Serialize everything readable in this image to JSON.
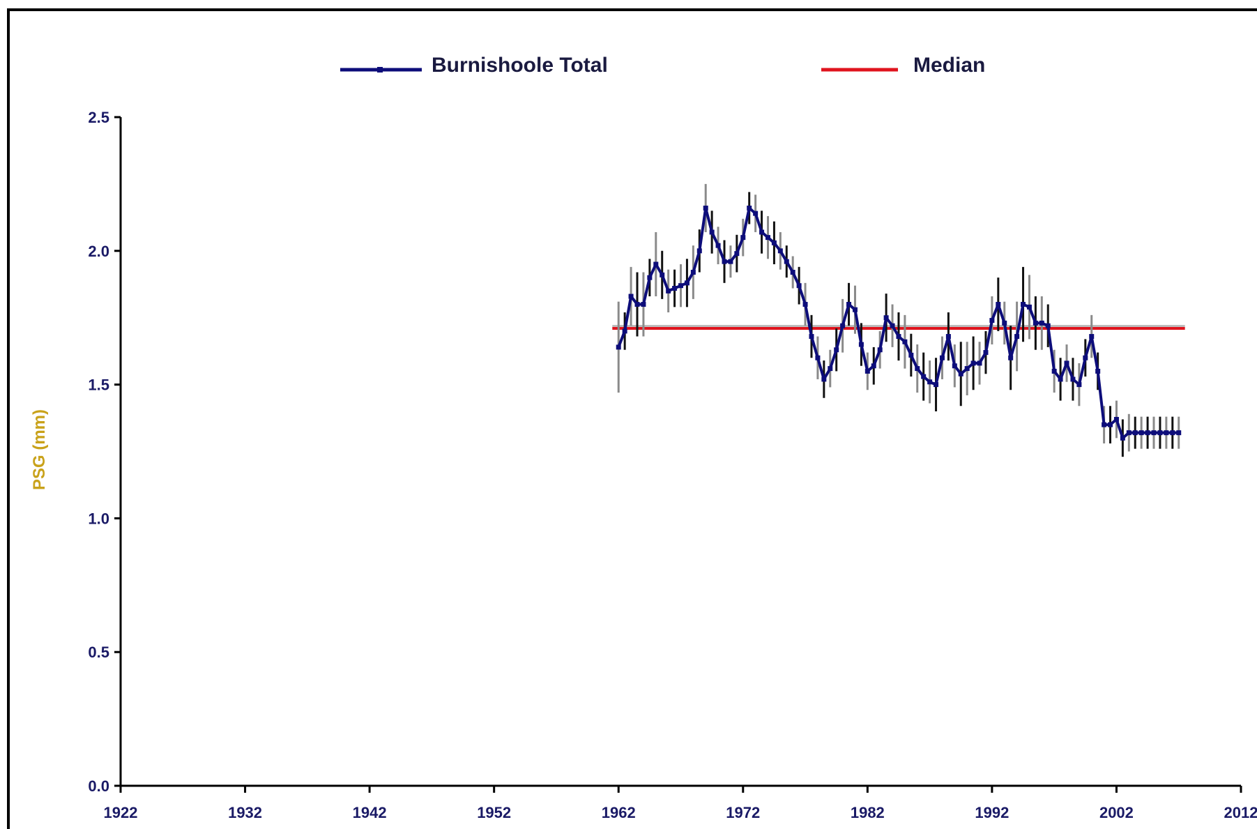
{
  "chart_data": {
    "type": "line",
    "title": "",
    "xlabel": "",
    "ylabel": "PSG (mm)",
    "xlim": [
      1922,
      2012
    ],
    "ylim": [
      0.0,
      2.5
    ],
    "x_ticks": [
      "1922",
      "1932",
      "1942",
      "1952",
      "1962",
      "1972",
      "1982",
      "1992",
      "2002",
      "2012"
    ],
    "y_ticks": [
      "0.0",
      "0.5",
      "1.0",
      "1.5",
      "2.0",
      "2.5"
    ],
    "legend_position": "top",
    "grid": false,
    "colors": {
      "series": "#0d0d7a",
      "median": "#e0141e",
      "error_bar_dark": "#111111",
      "error_bar_light": "#8a8a8a",
      "axis": "#000000",
      "ylabel": "#c9a21a"
    },
    "series": [
      {
        "name": "Burnishoole Total",
        "x": [
          1962.0,
          1962.5,
          1963.0,
          1963.5,
          1964.0,
          1964.5,
          1965.0,
          1965.5,
          1966.0,
          1966.5,
          1967.0,
          1967.5,
          1968.0,
          1968.5,
          1969.0,
          1969.5,
          1970.0,
          1970.5,
          1971.0,
          1971.5,
          1972.0,
          1972.5,
          1973.0,
          1973.5,
          1974.0,
          1974.5,
          1975.0,
          1975.5,
          1976.0,
          1976.5,
          1977.0,
          1977.5,
          1978.0,
          1978.5,
          1979.0,
          1979.5,
          1980.0,
          1980.5,
          1981.0,
          1981.5,
          1982.0,
          1982.5,
          1983.0,
          1983.5,
          1984.0,
          1984.5,
          1985.0,
          1985.5,
          1986.0,
          1986.5,
          1987.0,
          1987.5,
          1988.0,
          1988.5,
          1989.0,
          1989.5,
          1990.0,
          1990.5,
          1991.0,
          1991.5,
          1992.0,
          1992.5,
          1993.0,
          1993.5,
          1994.0,
          1994.5,
          1995.0,
          1995.5,
          1996.0,
          1996.5,
          1997.0,
          1997.5,
          1998.0,
          1998.5,
          1999.0,
          1999.5,
          2000.0,
          2000.5,
          2001.0,
          2001.5,
          2002.0,
          2002.5,
          2003.0,
          2003.5,
          2004.0,
          2004.5,
          2005.0,
          2005.5,
          2006.0,
          2006.5,
          2007.0
        ],
        "values": [
          1.64,
          1.7,
          1.83,
          1.8,
          1.8,
          1.9,
          1.95,
          1.91,
          1.85,
          1.86,
          1.87,
          1.88,
          1.92,
          2.0,
          2.16,
          2.07,
          2.02,
          1.96,
          1.96,
          1.99,
          2.05,
          2.16,
          2.14,
          2.07,
          2.05,
          2.03,
          2.0,
          1.96,
          1.92,
          1.87,
          1.8,
          1.68,
          1.6,
          1.52,
          1.56,
          1.63,
          1.72,
          1.8,
          1.78,
          1.65,
          1.55,
          1.57,
          1.63,
          1.75,
          1.72,
          1.68,
          1.66,
          1.61,
          1.56,
          1.53,
          1.51,
          1.5,
          1.6,
          1.68,
          1.57,
          1.54,
          1.56,
          1.58,
          1.58,
          1.62,
          1.74,
          1.8,
          1.73,
          1.6,
          1.68,
          1.8,
          1.79,
          1.73,
          1.73,
          1.72,
          1.55,
          1.52,
          1.58,
          1.52,
          1.5,
          1.6,
          1.68,
          1.55,
          1.35,
          1.35,
          1.37,
          1.3,
          1.32,
          1.32,
          1.32,
          1.32,
          1.32,
          1.32,
          1.32,
          1.32,
          1.32
        ],
        "errors": [
          0.17,
          0.07,
          0.11,
          0.12,
          0.12,
          0.07,
          0.12,
          0.09,
          0.08,
          0.07,
          0.08,
          0.09,
          0.1,
          0.08,
          0.09,
          0.08,
          0.07,
          0.08,
          0.06,
          0.07,
          0.07,
          0.06,
          0.07,
          0.08,
          0.08,
          0.08,
          0.07,
          0.06,
          0.06,
          0.07,
          0.08,
          0.08,
          0.08,
          0.07,
          0.07,
          0.08,
          0.1,
          0.08,
          0.09,
          0.08,
          0.07,
          0.07,
          0.07,
          0.09,
          0.08,
          0.09,
          0.1,
          0.08,
          0.09,
          0.09,
          0.08,
          0.1,
          0.08,
          0.09,
          0.08,
          0.12,
          0.1,
          0.1,
          0.08,
          0.08,
          0.09,
          0.1,
          0.08,
          0.12,
          0.13,
          0.14,
          0.12,
          0.1,
          0.1,
          0.08,
          0.08,
          0.08,
          0.07,
          0.08,
          0.08,
          0.07,
          0.08,
          0.07,
          0.07,
          0.07,
          0.07,
          0.07,
          0.07,
          0.06,
          0.06,
          0.06,
          0.06,
          0.06,
          0.06,
          0.06,
          0.06
        ]
      },
      {
        "name": "Median",
        "x": [
          1961.5,
          2007.5
        ],
        "values": [
          1.71,
          1.71
        ]
      }
    ]
  }
}
